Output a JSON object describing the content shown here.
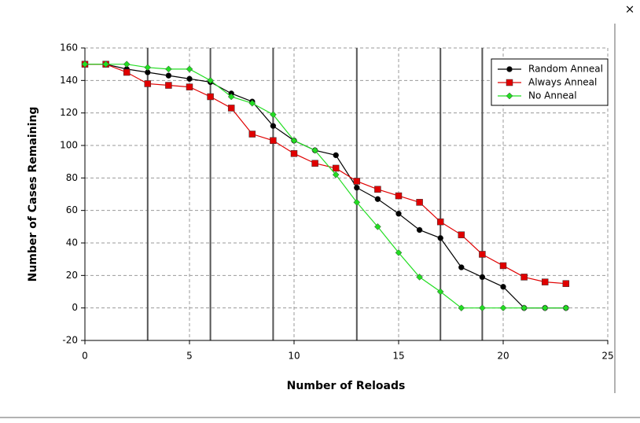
{
  "close_label": "×",
  "chart_data": {
    "type": "line",
    "x_label": "Number of Reloads",
    "y_label": "Number of Cases Remaining",
    "x": [
      0,
      1,
      2,
      3,
      4,
      5,
      6,
      7,
      8,
      9,
      10,
      11,
      12,
      13,
      14,
      15,
      16,
      17,
      18,
      19,
      20,
      21,
      22,
      23
    ],
    "series": [
      {
        "name": "Random Anneal",
        "color": "#000000",
        "marker": "circle",
        "values": [
          150,
          150,
          147,
          145,
          143,
          141,
          139,
          132,
          127,
          112,
          103,
          97,
          94,
          74,
          67,
          58,
          48,
          43,
          25,
          19,
          13,
          0,
          0,
          0
        ]
      },
      {
        "name": "Always Anneal",
        "color": "#e00000",
        "marker": "square",
        "values": [
          150,
          150,
          145,
          138,
          137,
          136,
          130,
          123,
          107,
          103,
          95,
          89,
          86,
          78,
          73,
          69,
          65,
          53,
          45,
          33,
          26,
          19,
          16,
          15
        ]
      },
      {
        "name": "No Anneal",
        "color": "#22dd22",
        "marker": "diamond",
        "values": [
          150,
          150,
          150,
          148,
          147,
          147,
          140,
          130,
          126,
          119,
          103,
          97,
          82,
          65,
          50,
          34,
          19,
          10,
          0,
          0,
          0,
          0,
          0,
          0
        ]
      }
    ],
    "vlines": [
      3,
      6,
      9,
      13,
      17,
      19
    ],
    "xlim": [
      0,
      25
    ],
    "ylim": [
      -20,
      160
    ],
    "xticks": [
      0,
      5,
      10,
      15,
      20,
      25
    ],
    "yticks": [
      -20,
      0,
      20,
      40,
      60,
      80,
      100,
      120,
      140,
      160
    ],
    "grid": true,
    "legend": "top-right"
  }
}
